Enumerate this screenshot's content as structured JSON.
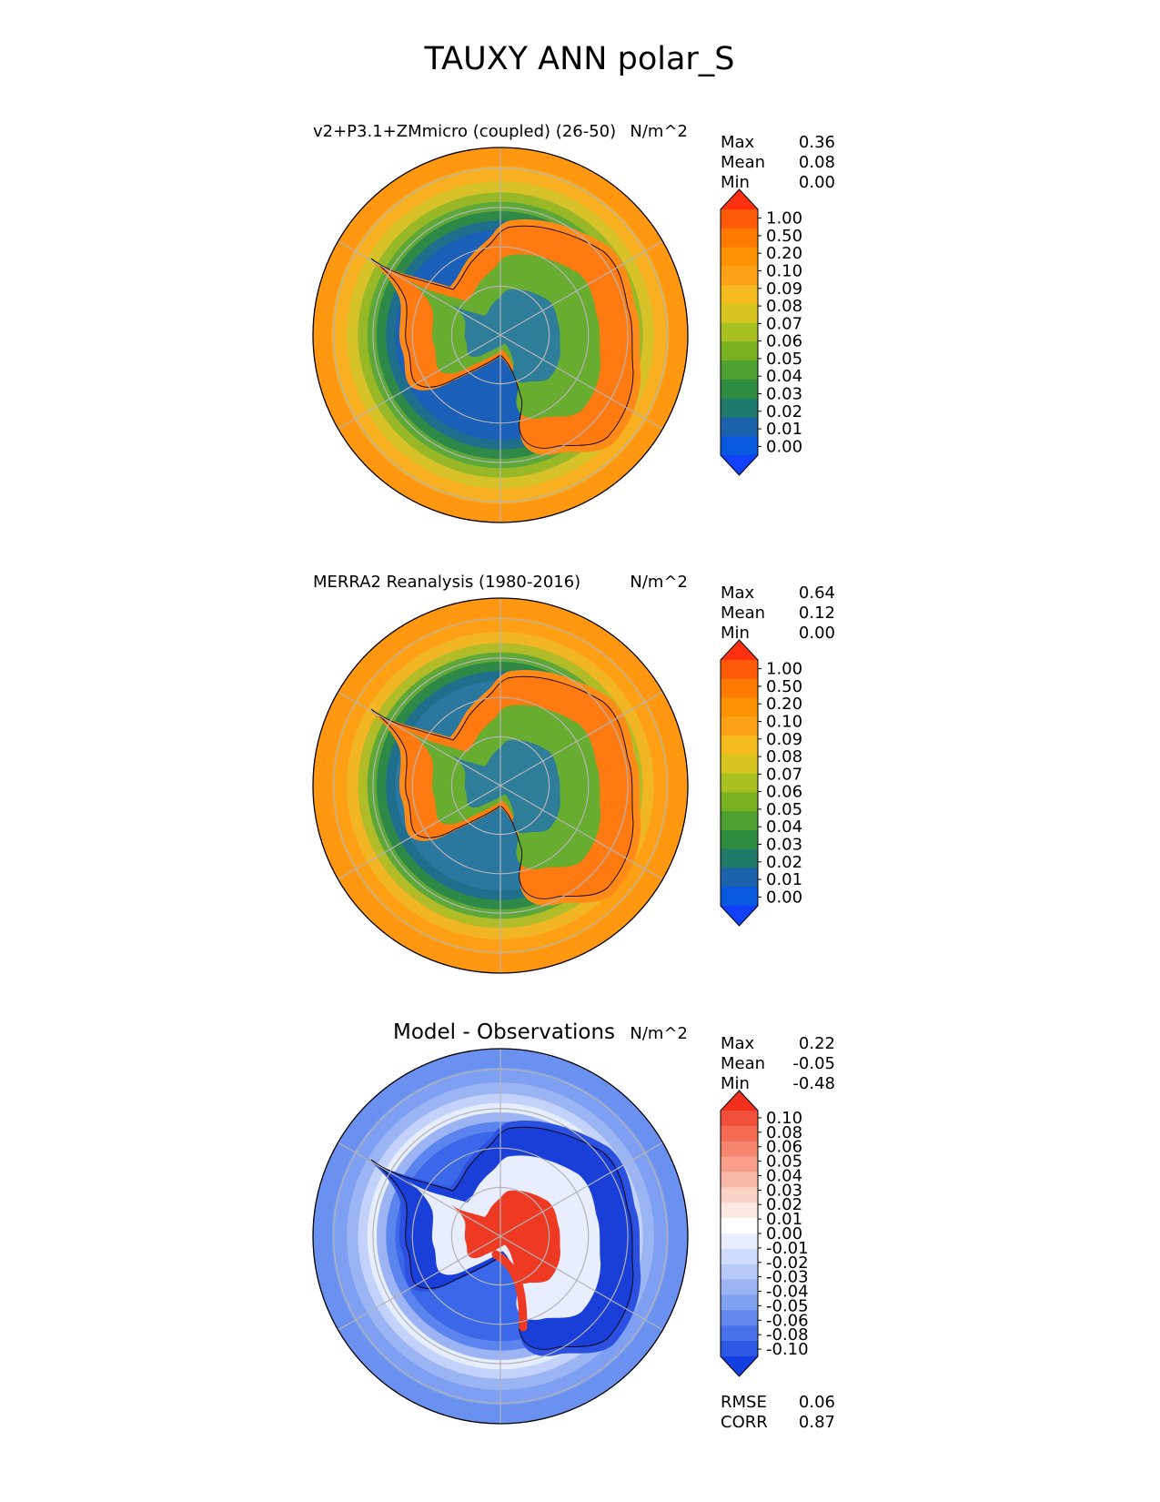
{
  "figure": {
    "title": "TAUXY ANN polar_S"
  },
  "chart_data": [
    {
      "type": "heatmap",
      "projection": "south-polar-stereographic",
      "title_left": "v2+P3.1+ZMmicro (coupled) (26-50)",
      "title_right": "N/m^2",
      "stats": [
        {
          "label": "Max",
          "value": "0.36"
        },
        {
          "label": "Mean",
          "value": "0.08"
        },
        {
          "label": "Min",
          "value": "0.00"
        }
      ],
      "colorbar": {
        "extend": "both",
        "tick_labels": [
          "1.00",
          "0.50",
          "0.20",
          "0.10",
          "0.09",
          "0.08",
          "0.07",
          "0.06",
          "0.05",
          "0.04",
          "0.03",
          "0.02",
          "0.01",
          "0.00"
        ],
        "colors": [
          "#ff3010",
          "#ff5a08",
          "#ff7a00",
          "#ff9200",
          "#ffa218",
          "#f5bb20",
          "#d8c41e",
          "#a8c020",
          "#78b020",
          "#4ea030",
          "#2e8c40",
          "#1e7a6a",
          "#1a62aa",
          "#0858e0",
          "#1040f8"
        ]
      },
      "field": {
        "ocean_band_colors": [
          "#ff9810",
          "#f8b020",
          "#d8c22a",
          "#98b828",
          "#5ea838",
          "#2e8848",
          "#1e6e8c",
          "#1a5fb8"
        ],
        "land_colors": [
          "#ff8a18",
          "#ff7a10",
          "#68ac30",
          "#2e7e9a"
        ]
      }
    },
    {
      "type": "heatmap",
      "projection": "south-polar-stereographic",
      "title_left": "MERRA2 Reanalysis (1980-2016)",
      "title_right": "N/m^2",
      "stats": [
        {
          "label": "Max",
          "value": "0.64"
        },
        {
          "label": "Mean",
          "value": "0.12"
        },
        {
          "label": "Min",
          "value": "0.00"
        }
      ],
      "colorbar": {
        "extend": "both",
        "tick_labels": [
          "1.00",
          "0.50",
          "0.20",
          "0.10",
          "0.09",
          "0.08",
          "0.07",
          "0.06",
          "0.05",
          "0.04",
          "0.03",
          "0.02",
          "0.01",
          "0.00"
        ],
        "colors": [
          "#ff3010",
          "#ff5a08",
          "#ff7a00",
          "#ff9200",
          "#ffa218",
          "#f5bb20",
          "#d8c41e",
          "#a8c020",
          "#78b020",
          "#4ea030",
          "#2e8c40",
          "#1e7a6a",
          "#1a62aa",
          "#0858e0",
          "#1040f8"
        ]
      },
      "field": {
        "ocean_band_colors": [
          "#ff9810",
          "#ffa014",
          "#f2b624",
          "#b2bc28",
          "#5ea838",
          "#2e8848",
          "#1e6e8c",
          "#2a78a0"
        ],
        "land_colors": [
          "#ff8a18",
          "#ff7a10",
          "#68ac30",
          "#2e7e9a"
        ]
      }
    },
    {
      "type": "heatmap",
      "projection": "south-polar-stereographic",
      "title_left": "Model - Observations",
      "title_right": "N/m^2",
      "stats": [
        {
          "label": "Max",
          "value": "0.22"
        },
        {
          "label": "Mean",
          "value": "-0.05"
        },
        {
          "label": "Min",
          "value": "-0.48"
        }
      ],
      "metrics": [
        {
          "label": "RMSE",
          "value": "0.06"
        },
        {
          "label": "CORR",
          "value": "0.87"
        }
      ],
      "colorbar": {
        "extend": "both",
        "tick_labels": [
          "0.10",
          "0.08",
          "0.06",
          "0.05",
          "0.04",
          "0.03",
          "0.02",
          "0.01",
          "0.00",
          "-0.01",
          "-0.02",
          "-0.03",
          "-0.04",
          "-0.05",
          "-0.06",
          "-0.08",
          "-0.10"
        ],
        "colors": [
          "#f0301c",
          "#f2503a",
          "#f46a52",
          "#f6856e",
          "#f8a08c",
          "#fab8a8",
          "#fcd2c6",
          "#fee8e2",
          "#ffffff",
          "#e8eefe",
          "#d0dcfc",
          "#b8caf8",
          "#9cb4f4",
          "#80a0f0",
          "#6488ec",
          "#4870e8",
          "#2c58e4",
          "#1240e0"
        ]
      },
      "field": {
        "ocean_band_colors": [
          "#6a90f0",
          "#7fa0f2",
          "#9ab4f4",
          "#c2d2fa",
          "#e6eefe",
          "#9cb4f4",
          "#5c84ee",
          "#3a68e8"
        ],
        "land_colors": [
          "#2c50e0",
          "#1a3ed8",
          "#e8eefe",
          "#ee3a22"
        ]
      }
    }
  ]
}
